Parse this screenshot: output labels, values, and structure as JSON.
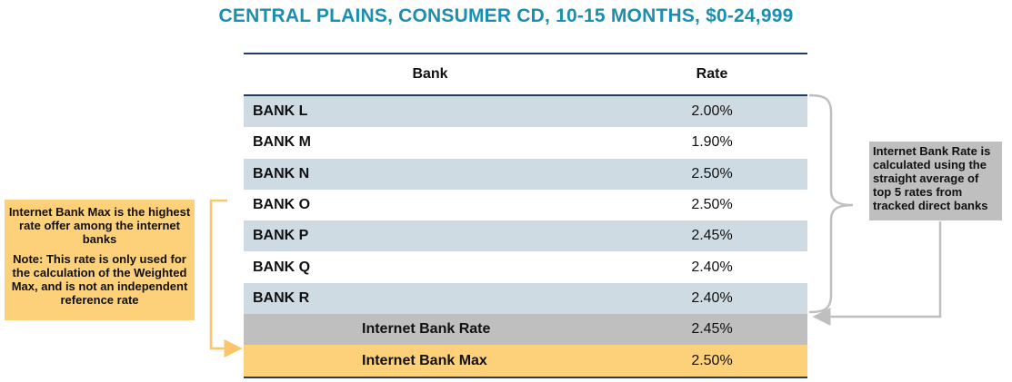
{
  "title": "CENTRAL PLAINS, CONSUMER CD, 10-15 MONTHS, $0-24,999",
  "table": {
    "headers": {
      "bank": "Bank",
      "rate": "Rate"
    },
    "rows": [
      {
        "bank": "BANK L",
        "rate": "2.00%"
      },
      {
        "bank": "BANK M",
        "rate": "1.90%"
      },
      {
        "bank": "BANK N",
        "rate": "2.50%"
      },
      {
        "bank": "BANK O",
        "rate": "2.50%"
      },
      {
        "bank": "BANK P",
        "rate": "2.45%"
      },
      {
        "bank": "BANK Q",
        "rate": "2.40%"
      },
      {
        "bank": "BANK R",
        "rate": "2.40%"
      }
    ],
    "summary": [
      {
        "label": "Internet Bank Rate",
        "rate": "2.45%"
      },
      {
        "label": "Internet Bank Max",
        "rate": "2.50%"
      }
    ]
  },
  "callouts": {
    "left": {
      "text1": "Internet Bank Max is the highest rate offer among the internet banks",
      "text2": "Note: This rate is only used for the calculation of the Weighted Max, and is not an independent reference rate"
    },
    "right": {
      "text": "Internet Bank Rate is calculated using the straight average of top 5 rates from tracked direct banks"
    }
  },
  "colors": {
    "title": "#1a8fb1",
    "row_alt": "#cfdbe2",
    "rate_row": "#bfbfbf",
    "max_row": "#fdd07a",
    "rule": "#1f3f66",
    "left_connector": "#fbc56a",
    "right_connector": "#bfbfbf"
  }
}
